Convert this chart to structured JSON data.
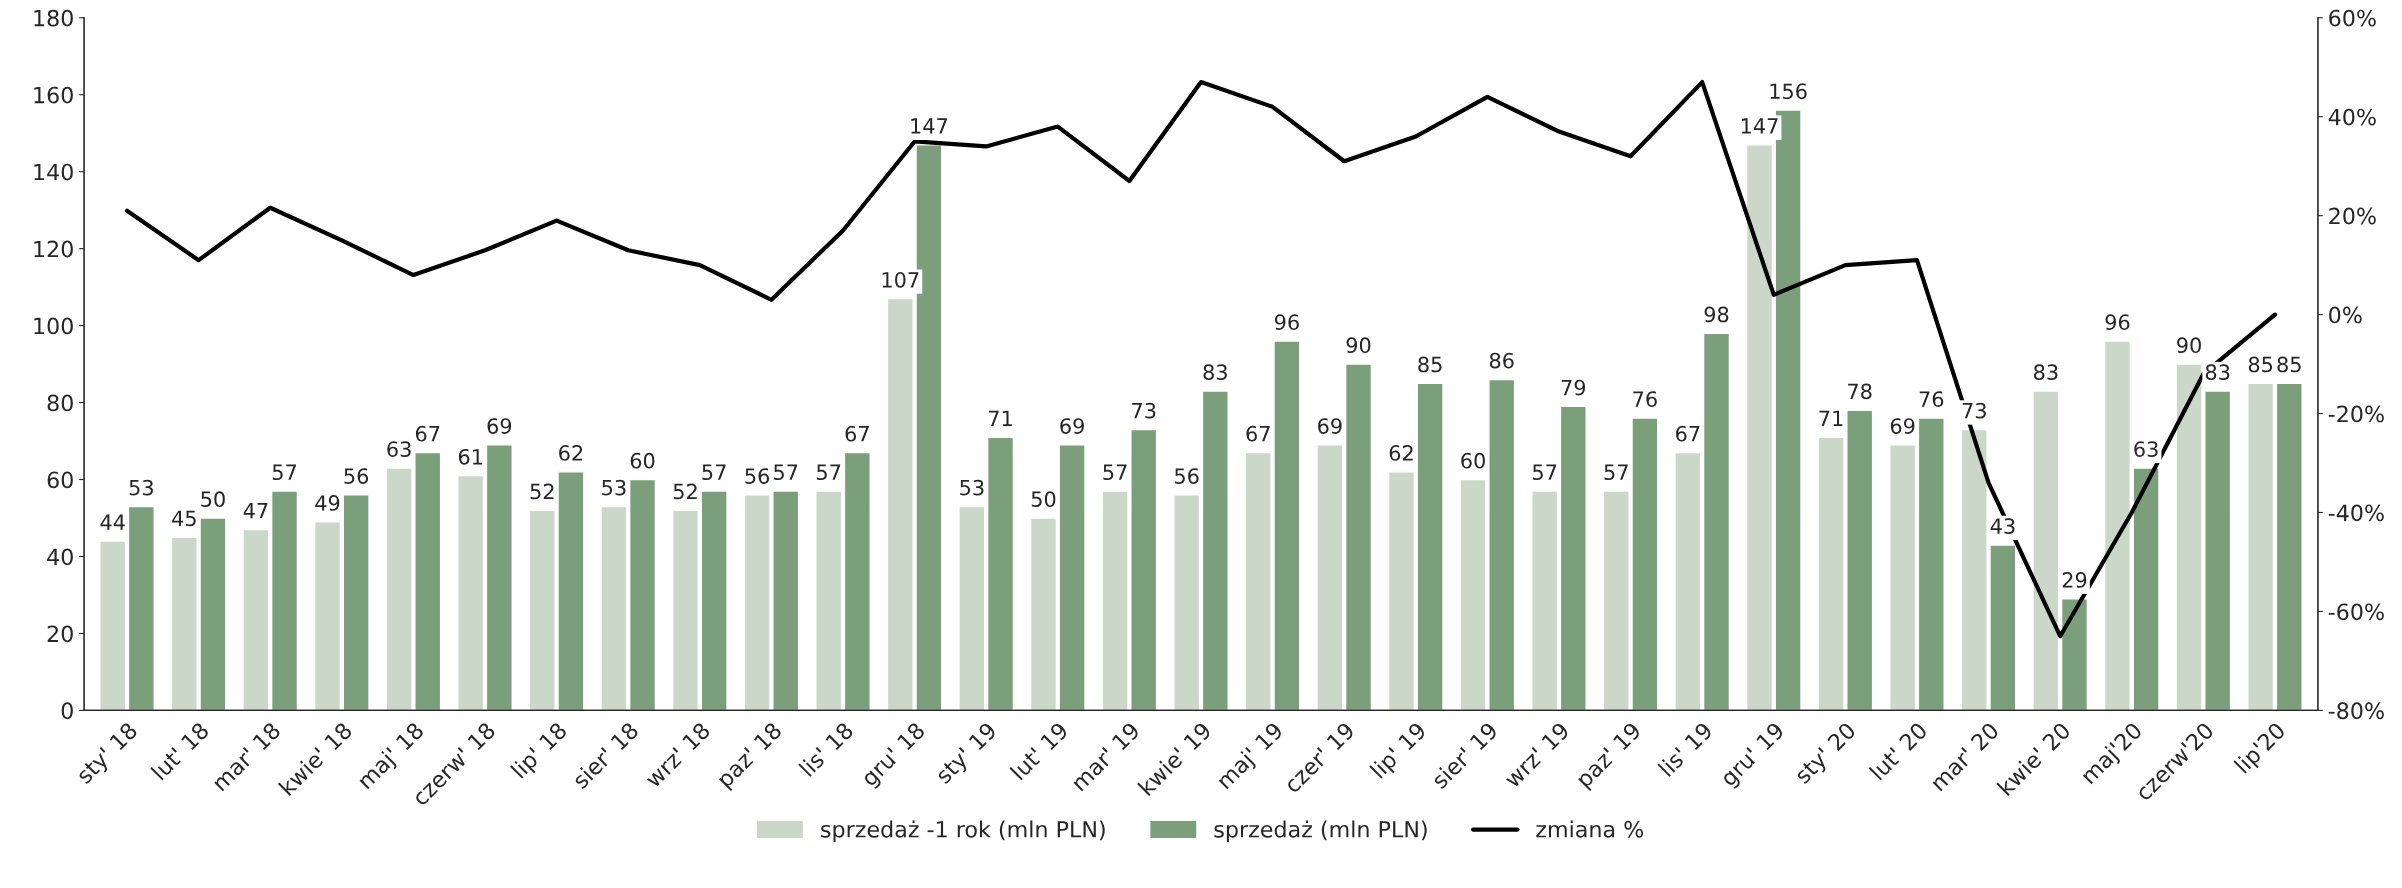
{
  "chart_data": {
    "type": "bar",
    "categories": [
      "sty' 18",
      "lut' 18",
      "mar' 18",
      "kwie' 18",
      "maj' 18",
      "czerw' 18",
      "lip' 18",
      "sier' 18",
      "wrz' 18",
      "paz' 18",
      "lis' 18",
      "gru' 18",
      "sty' 19",
      "lut' 19",
      "mar' 19",
      "kwie' 19",
      "maj' 19",
      "czer' 19",
      "lip' 19",
      "sier' 19",
      "wrz' 19",
      "paz' 19",
      "lis' 19",
      "gru' 19",
      "sty' 20",
      "lut' 20",
      "mar' 20",
      "kwie' 20",
      "maj'20",
      "czerw'20",
      "lip'20"
    ],
    "series": [
      {
        "name": "sprzedaż -1 rok (mln PLN)",
        "color": "#cbd8c9",
        "values": [
          44,
          45,
          47,
          49,
          63,
          61,
          52,
          53,
          52,
          56,
          57,
          107,
          53,
          50,
          57,
          56,
          67,
          69,
          62,
          60,
          57,
          57,
          67,
          147,
          71,
          69,
          73,
          83,
          96,
          90,
          85
        ],
        "value_labels": [
          "44",
          "45",
          "47",
          "49",
          "63",
          "61",
          "52",
          "53",
          "52",
          "56",
          "57",
          "107",
          "53",
          "50",
          "57",
          "56",
          "67",
          "69",
          "62",
          "60",
          "57",
          "57",
          "67",
          "147",
          "71",
          "69",
          "73",
          "83",
          "96",
          "90",
          "85"
        ]
      },
      {
        "name": "sprzedaż (mln PLN)",
        "color": "#7c9f7b",
        "values": [
          53,
          50,
          57,
          56,
          67,
          69,
          62,
          60,
          57,
          57,
          67,
          147,
          71,
          69,
          73,
          83,
          96,
          90,
          85,
          86,
          79,
          76,
          98,
          156,
          78,
          76,
          43,
          29,
          63,
          83,
          85
        ],
        "value_labels": [
          "53",
          "50",
          "57",
          "56",
          "67",
          "69",
          "62",
          "60",
          "57",
          "57",
          "67",
          "147",
          "71",
          "69",
          "73",
          "83",
          "96",
          "90",
          "85",
          "86",
          "79",
          "76",
          "98",
          "156",
          "78",
          "76",
          "43",
          "29",
          "63",
          "83",
          "85"
        ]
      },
      {
        "name": "zmiana %",
        "type": "line",
        "axis": "y2",
        "color": "#000000",
        "values": [
          21,
          11,
          21.6,
          15,
          8,
          13,
          19,
          13,
          10,
          3,
          17,
          35,
          34,
          38,
          27,
          47,
          42,
          31,
          36,
          44,
          37,
          32,
          47,
          4,
          10,
          11,
          -34,
          -65,
          -40,
          -12,
          0
        ]
      }
    ],
    "ylim": [
      0,
      180
    ],
    "yticks": [
      0,
      20,
      40,
      60,
      80,
      100,
      120,
      140,
      160,
      180
    ],
    "y2lim": [
      -80,
      60
    ],
    "y2ticks": [
      {
        "value": -80,
        "label": "-80%"
      },
      {
        "value": -60,
        "label": "-60%"
      },
      {
        "value": -40,
        "label": "-40%"
      },
      {
        "value": -20,
        "label": "-20%"
      },
      {
        "value": 0,
        "label": "0%"
      },
      {
        "value": 20,
        "label": "20%"
      },
      {
        "value": 40,
        "label": "40%"
      },
      {
        "value": 60,
        "label": "60%"
      }
    ],
    "grid": false,
    "legend": "bottom",
    "marker": "none",
    "line_style": "solid"
  }
}
